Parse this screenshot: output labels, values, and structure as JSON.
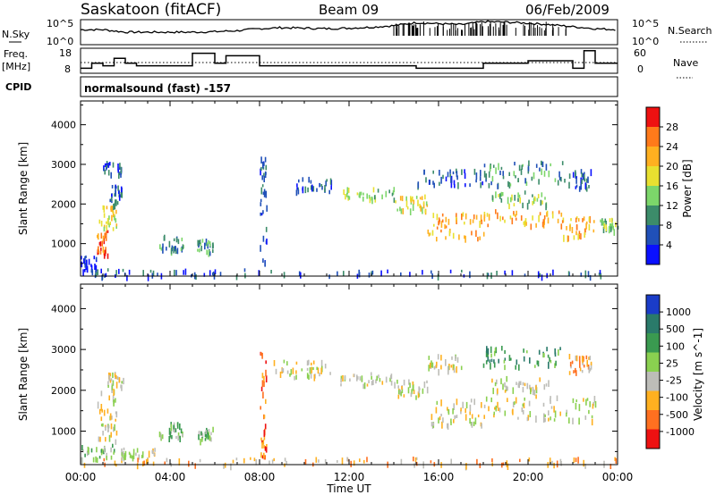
{
  "header": {
    "station": "Saskatoon (fitACF)",
    "beam": "Beam 09",
    "date": "06/Feb/2009"
  },
  "noise_panel": {
    "left_label": "N.Sky",
    "right_label": "N.Search",
    "left_ticks": [
      "10^5",
      "10^0"
    ],
    "right_ticks": [
      "10^5",
      "10^0"
    ]
  },
  "freq_panel": {
    "left_label_1": "Freq.",
    "left_label_2": "[MHz]",
    "right_label": "Nave",
    "left_ticks": [
      "18",
      "8"
    ],
    "right_ticks": [
      "60",
      "0"
    ]
  },
  "cpid": {
    "label": "CPID",
    "program": "normalsound (fast) -157"
  },
  "power_scale": {
    "label": "Power [dB]",
    "ticks": [
      "28",
      "24",
      "20",
      "16",
      "12",
      "8",
      "4"
    ],
    "colors": [
      "#ee1111",
      "#ff7a1a",
      "#ffb020",
      "#e8e030",
      "#7cd66a",
      "#3c8c6a",
      "#2050b8",
      "#0a10ff"
    ]
  },
  "velocity_scale": {
    "label": "Velocity [m s^-1]",
    "ticks": [
      "1000",
      "500",
      "100",
      "25",
      "-25",
      "-100",
      "-500",
      "-1000"
    ],
    "colors": [
      "#1a3cc8",
      "#2a7a6a",
      "#3a9a50",
      "#8ad050",
      "#bdbdb8",
      "#ffb020",
      "#ff7020",
      "#ee1111"
    ]
  },
  "chart_data": [
    {
      "type": "line",
      "panel": "noise",
      "series": [
        {
          "name": "N.Sky",
          "x": [
            0,
            1,
            2,
            3,
            4,
            5,
            6,
            7,
            8,
            9,
            10,
            11,
            12,
            13,
            14,
            15,
            16,
            17,
            18,
            19,
            20,
            21,
            22,
            23,
            24
          ],
          "y": [
            3,
            3,
            2.5,
            2.5,
            2.5,
            2.5,
            2.6,
            2.8,
            3.2,
            3.4,
            3.3,
            3.2,
            3.3,
            3.5,
            3.8,
            4.4,
            4.2,
            4.0,
            4.6,
            4.5,
            4.3,
            4.0,
            3.6,
            3.2,
            3.0
          ]
        }
      ],
      "ylim": [
        0,
        5
      ]
    },
    {
      "type": "line",
      "panel": "frequency",
      "series": [
        {
          "name": "Freq.",
          "x": [
            0,
            0.5,
            1,
            1.5,
            2,
            2.5,
            3,
            3.5,
            5,
            5.5,
            6,
            6.5,
            8,
            8.5,
            10,
            12,
            14,
            15,
            16,
            17,
            18,
            19,
            20,
            21,
            22,
            22.5,
            23,
            24
          ],
          "y": [
            10,
            12,
            11,
            14,
            12,
            11,
            11,
            11,
            16,
            16,
            12,
            15,
            11,
            11,
            11,
            11,
            11,
            10,
            10,
            10,
            12,
            12,
            13,
            13,
            10,
            17,
            12,
            12
          ]
        }
      ],
      "ylim": [
        8,
        18
      ]
    },
    {
      "type": "heatmap",
      "title": "Power [dB]",
      "xlabel": "",
      "ylabel": "Slant Range [km]",
      "xlim": [
        0,
        24
      ],
      "ylim": [
        180,
        4600
      ],
      "yticks": [
        1000,
        2000,
        3000,
        4000
      ],
      "xticks": [
        "00:00",
        "04:00",
        "08:00",
        "12:00",
        "16:00",
        "20:00",
        "00:00"
      ],
      "regions": [
        {
          "t0": 0.0,
          "t1": 0.7,
          "r0": 350,
          "r1": 700,
          "level": 7
        },
        {
          "t0": 0.7,
          "t1": 1.2,
          "r0": 750,
          "r1": 1350,
          "level": 1
        },
        {
          "t0": 0.8,
          "t1": 1.6,
          "r0": 1400,
          "r1": 2000,
          "level": 3
        },
        {
          "t0": 1.2,
          "t1": 1.9,
          "r0": 2000,
          "r1": 2500,
          "level": 6
        },
        {
          "t0": 1.0,
          "t1": 1.8,
          "r0": 2800,
          "r1": 3100,
          "level": 6
        },
        {
          "t0": 3.5,
          "t1": 4.6,
          "r0": 850,
          "r1": 1250,
          "level": 5
        },
        {
          "t0": 5.2,
          "t1": 5.9,
          "r0": 800,
          "r1": 1150,
          "level": 5
        },
        {
          "t0": 9.6,
          "t1": 11.2,
          "r0": 2350,
          "r1": 2700,
          "level": 6
        },
        {
          "t0": 11.6,
          "t1": 14.0,
          "r0": 2150,
          "r1": 2450,
          "level": 4
        },
        {
          "t0": 14.0,
          "t1": 15.5,
          "r0": 1850,
          "r1": 2300,
          "level": 3
        },
        {
          "t0": 15.5,
          "t1": 18.0,
          "r0": 1150,
          "r1": 1800,
          "level": 2
        },
        {
          "t0": 18.0,
          "t1": 21.5,
          "r0": 1500,
          "r1": 1900,
          "level": 2
        },
        {
          "t0": 21.5,
          "t1": 23.0,
          "r0": 1200,
          "r1": 1700,
          "level": 2
        },
        {
          "t0": 23.2,
          "t1": 24.0,
          "r0": 1300,
          "r1": 1650,
          "level": 4
        },
        {
          "t0": 15.0,
          "t1": 18.0,
          "r0": 2500,
          "r1": 2900,
          "level": 6
        },
        {
          "t0": 18.0,
          "t1": 21.8,
          "r0": 2500,
          "r1": 3100,
          "level": 5
        },
        {
          "t0": 18.3,
          "t1": 21.0,
          "r0": 2000,
          "r1": 2350,
          "level": 4
        },
        {
          "t0": 21.8,
          "t1": 22.8,
          "r0": 2400,
          "r1": 2900,
          "level": 6
        },
        {
          "t0": 0.0,
          "t1": 24.0,
          "r0": 200,
          "r1": 380,
          "level": 6
        },
        {
          "t0": 8.0,
          "t1": 8.3,
          "r0": 400,
          "r1": 3200,
          "level": 6
        }
      ]
    },
    {
      "type": "heatmap",
      "title": "Velocity [m s^-1]",
      "xlabel": "Time UT",
      "ylabel": "Slant Range [km]",
      "xlim": [
        0,
        24
      ],
      "ylim": [
        180,
        4600
      ],
      "yticks": [
        1000,
        2000,
        3000,
        4000
      ],
      "xticks": [
        "00:00",
        "04:00",
        "08:00",
        "12:00",
        "16:00",
        "20:00",
        "00:00"
      ],
      "regions": [
        {
          "t0": 0.0,
          "t1": 1.5,
          "r0": 350,
          "r1": 700,
          "level": 3
        },
        {
          "t0": 0.7,
          "t1": 1.6,
          "r0": 750,
          "r1": 2000,
          "level": 4
        },
        {
          "t0": 1.2,
          "t1": 1.9,
          "r0": 2000,
          "r1": 2500,
          "level": 4
        },
        {
          "t0": 1.8,
          "t1": 3.5,
          "r0": 400,
          "r1": 600,
          "level": 4
        },
        {
          "t0": 3.5,
          "t1": 4.6,
          "r0": 850,
          "r1": 1250,
          "level": 3
        },
        {
          "t0": 5.2,
          "t1": 5.9,
          "r0": 800,
          "r1": 1150,
          "level": 3
        },
        {
          "t0": 8.5,
          "t1": 11.4,
          "r0": 2350,
          "r1": 2750,
          "level": 4
        },
        {
          "t0": 11.6,
          "t1": 14.0,
          "r0": 2150,
          "r1": 2450,
          "level": 4
        },
        {
          "t0": 14.0,
          "t1": 15.5,
          "r0": 1850,
          "r1": 2300,
          "level": 4
        },
        {
          "t0": 15.5,
          "t1": 18.0,
          "r0": 1150,
          "r1": 1800,
          "level": 4
        },
        {
          "t0": 18.0,
          "t1": 23.0,
          "r0": 1300,
          "r1": 1900,
          "level": 4
        },
        {
          "t0": 15.5,
          "t1": 17.0,
          "r0": 2500,
          "r1": 2900,
          "level": 4
        },
        {
          "t0": 17.8,
          "t1": 21.5,
          "r0": 2600,
          "r1": 3100,
          "level": 2
        },
        {
          "t0": 18.3,
          "t1": 21.0,
          "r0": 2000,
          "r1": 2350,
          "level": 4
        },
        {
          "t0": 21.8,
          "t1": 22.8,
          "r0": 2400,
          "r1": 2900,
          "level": 5
        },
        {
          "t0": 0.0,
          "t1": 24.0,
          "r0": 200,
          "r1": 380,
          "level": 5
        },
        {
          "t0": 8.0,
          "t1": 8.3,
          "r0": 400,
          "r1": 3200,
          "level": 6
        }
      ]
    }
  ],
  "time_axis_label": "Time UT"
}
